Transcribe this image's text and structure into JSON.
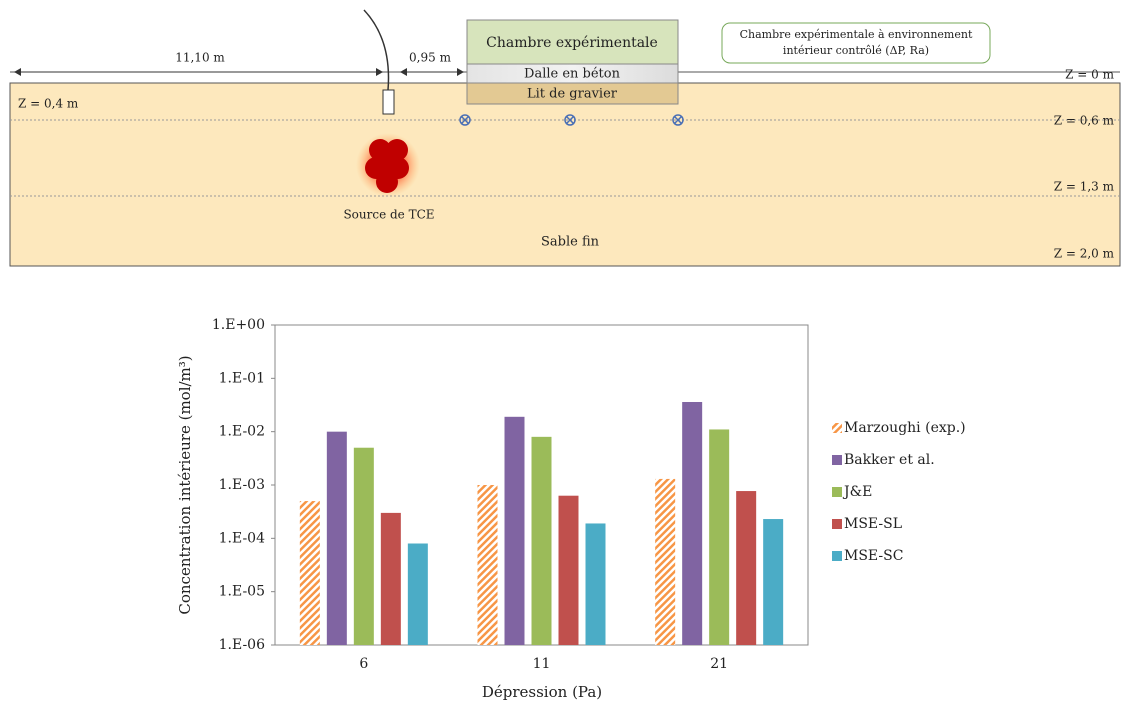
{
  "diagram": {
    "distances": [
      "11,10 m",
      "0,95 m"
    ],
    "chamber": "Chambre expérimentale",
    "slab": "Dalle en béton",
    "gravel": "Lit de gravier",
    "annotation": [
      "Chambre expérimentale à environnement",
      "intérieur contrôlé (ΔP, Ra)"
    ],
    "depth_left": "Z = 0,4 m",
    "depths": [
      "Z = 0 m",
      "Z = 0,6 m",
      "Z = 1,3 m",
      "Z = 2,0 m"
    ],
    "source": "Source de TCE",
    "soil": "Sable fin"
  },
  "chart_data": {
    "type": "bar",
    "xlabel": "Dépression (Pa)",
    "ylabel": "Concentration intérieure (mol/m³)",
    "categories": [
      "6",
      "11",
      "21"
    ],
    "log_scale": true,
    "ylim": [
      1e-06,
      1
    ],
    "yticks": [
      {
        "value": 1e-06,
        "label": "1.E-06"
      },
      {
        "value": 1e-05,
        "label": "1.E-05"
      },
      {
        "value": 0.0001,
        "label": "1.E-04"
      },
      {
        "value": 0.001,
        "label": "1.E-03"
      },
      {
        "value": 0.01,
        "label": "1.E-02"
      },
      {
        "value": 0.1,
        "label": "1.E-01"
      },
      {
        "value": 1,
        "label": "1.E+00"
      }
    ],
    "legend": "right",
    "series": [
      {
        "name": "Marzoughi (exp.)",
        "color": "#f79646",
        "hatch": true,
        "values": [
          0.0005,
          0.001,
          0.0013
        ]
      },
      {
        "name": "Bakker et al.",
        "color": "#8064a2",
        "values": [
          0.01,
          0.019,
          0.036
        ]
      },
      {
        "name": "J&E",
        "color": "#9bbb59",
        "values": [
          0.005,
          0.008,
          0.011
        ]
      },
      {
        "name": "MSE-SL",
        "color": "#c0504d",
        "values": [
          0.0003,
          0.00063,
          0.00077
        ]
      },
      {
        "name": "MSE-SC",
        "color": "#4bacc6",
        "values": [
          8e-05,
          0.00019,
          0.00023
        ]
      }
    ]
  }
}
